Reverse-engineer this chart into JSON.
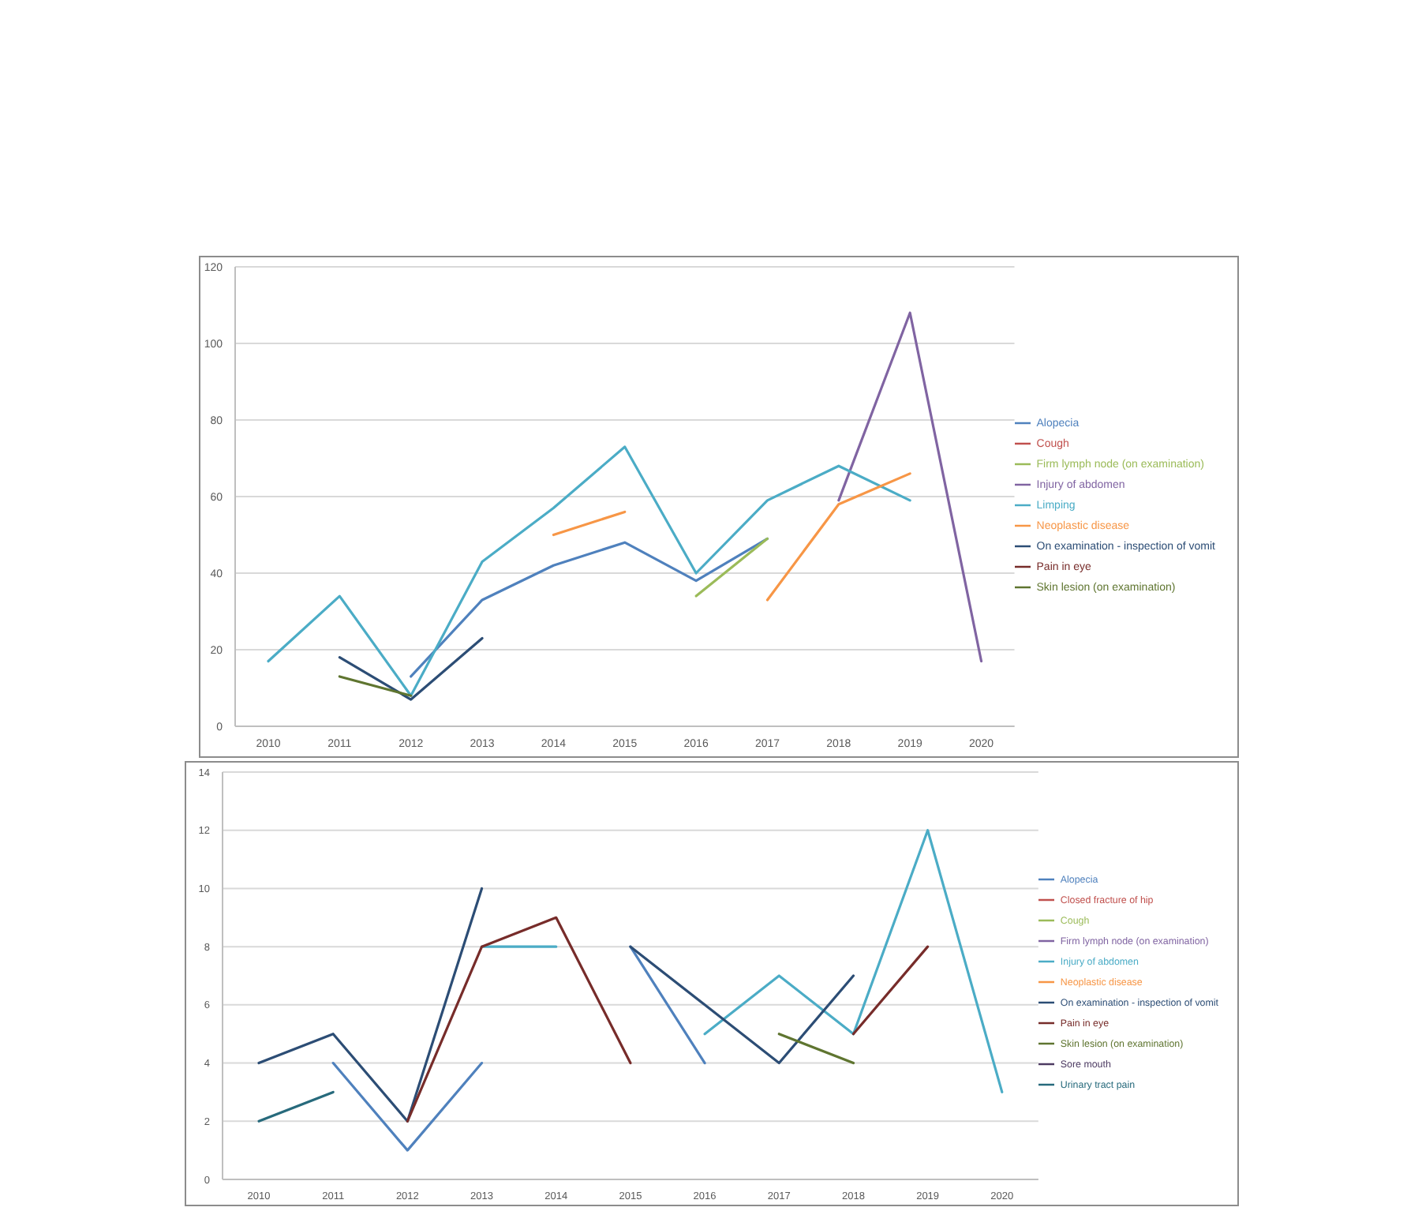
{
  "chart_data": [
    {
      "type": "line",
      "categories": [
        "2010",
        "2011",
        "2012",
        "2013",
        "2014",
        "2015",
        "2016",
        "2017",
        "2018",
        "2019",
        "2020"
      ],
      "ylim": [
        0,
        120
      ],
      "yticks": [
        0,
        20,
        40,
        60,
        80,
        100,
        120
      ],
      "grid": "y",
      "legend": "right",
      "marker": "none",
      "line_style": "solid",
      "series": [
        {
          "name": "Alopecia",
          "color": "#4f81bd",
          "values": [
            null,
            null,
            13,
            33,
            42,
            48,
            38,
            49,
            null,
            null,
            null
          ]
        },
        {
          "name": "Cough",
          "color": "#c0504d",
          "values": [
            null,
            null,
            null,
            null,
            null,
            null,
            null,
            null,
            null,
            null,
            null
          ]
        },
        {
          "name": "Firm lymph node (on examination)",
          "color": "#9bbb59",
          "values": [
            null,
            null,
            null,
            null,
            null,
            null,
            34,
            49,
            null,
            null,
            null
          ]
        },
        {
          "name": "Injury of abdomen",
          "color": "#8064a2",
          "values": [
            null,
            null,
            null,
            null,
            null,
            null,
            null,
            null,
            59,
            108,
            17
          ]
        },
        {
          "name": "Limping",
          "color": "#4bacc6",
          "values": [
            17,
            34,
            8,
            43,
            57,
            73,
            40,
            59,
            68,
            59,
            null
          ]
        },
        {
          "name": "Neoplastic disease",
          "color": "#f79646",
          "values": [
            null,
            null,
            null,
            null,
            50,
            56,
            null,
            33,
            58,
            66,
            null
          ]
        },
        {
          "name": "On examination - inspection of vomit",
          "color": "#2c4d75",
          "values": [
            null,
            18,
            7,
            23,
            null,
            null,
            null,
            null,
            null,
            null,
            null
          ]
        },
        {
          "name": "Pain in eye",
          "color": "#772c2a",
          "values": [
            null,
            null,
            null,
            null,
            null,
            null,
            null,
            null,
            null,
            null,
            null
          ]
        },
        {
          "name": "Skin lesion (on examination)",
          "color": "#5f7530",
          "values": [
            null,
            13,
            8,
            null,
            null,
            null,
            null,
            null,
            null,
            null,
            null
          ]
        }
      ]
    },
    {
      "type": "line",
      "categories": [
        "2010",
        "2011",
        "2012",
        "2013",
        "2014",
        "2015",
        "2016",
        "2017",
        "2018",
        "2019",
        "2020"
      ],
      "ylim": [
        0,
        14
      ],
      "yticks": [
        0,
        2,
        4,
        6,
        8,
        10,
        12,
        14
      ],
      "grid": "y",
      "legend": "right",
      "marker": "none",
      "line_style": "solid",
      "series": [
        {
          "name": "Alopecia",
          "color": "#4f81bd",
          "values": [
            null,
            4,
            1,
            4,
            null,
            8,
            4,
            null,
            null,
            null,
            null
          ]
        },
        {
          "name": "Closed fracture of hip",
          "color": "#c0504d",
          "values": [
            null,
            null,
            null,
            null,
            null,
            null,
            null,
            null,
            null,
            null,
            null
          ]
        },
        {
          "name": "Cough",
          "color": "#9bbb59",
          "values": [
            null,
            null,
            null,
            null,
            null,
            null,
            null,
            null,
            null,
            null,
            null
          ]
        },
        {
          "name": "Firm lymph node (on examination)",
          "color": "#8064a2",
          "values": [
            null,
            null,
            null,
            null,
            null,
            null,
            null,
            null,
            null,
            null,
            null
          ]
        },
        {
          "name": "Injury of abdomen",
          "color": "#4bacc6",
          "values": [
            null,
            null,
            null,
            8,
            8,
            null,
            5,
            7,
            5,
            12,
            3
          ]
        },
        {
          "name": "Neoplastic disease",
          "color": "#f79646",
          "values": [
            null,
            null,
            null,
            null,
            null,
            null,
            null,
            null,
            null,
            null,
            null
          ]
        },
        {
          "name": "On examination - inspection of vomit",
          "color": "#2c4d75",
          "values": [
            4,
            5,
            2,
            10,
            null,
            8,
            6,
            4,
            7,
            null,
            null
          ]
        },
        {
          "name": "Pain in eye",
          "color": "#772c2a",
          "values": [
            null,
            null,
            2,
            8,
            9,
            4,
            null,
            null,
            5,
            8,
            null
          ]
        },
        {
          "name": "Skin lesion (on examination)",
          "color": "#5f7530",
          "values": [
            null,
            null,
            null,
            null,
            null,
            null,
            null,
            5,
            4,
            null,
            null
          ]
        },
        {
          "name": "Sore mouth",
          "color": "#4d3b62",
          "values": [
            null,
            null,
            null,
            null,
            null,
            null,
            null,
            null,
            null,
            null,
            null
          ]
        },
        {
          "name": "Urinary tract pain",
          "color": "#276a7c",
          "values": [
            2,
            3,
            null,
            null,
            null,
            null,
            null,
            null,
            null,
            null,
            null
          ]
        }
      ]
    }
  ]
}
